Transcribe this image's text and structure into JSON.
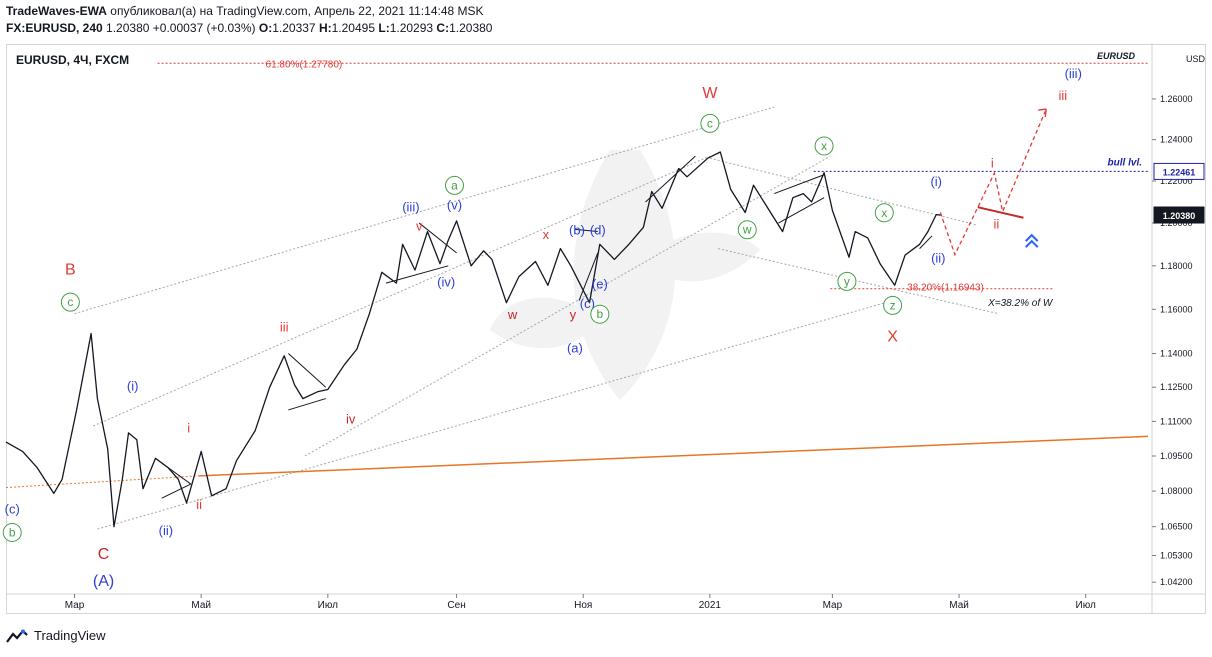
{
  "header": {
    "line1_author": "TradeWaves-EWA",
    "line1_rest": "опубликовал(а) на TradingView.com, Апрель 22, 2021 11:14:48 MSK",
    "symbol": "FX:EURUSD, 240",
    "last": "1.20380",
    "change": "+0.00037 (+0.03%)",
    "o_label": "O:",
    "o": "1.20337",
    "h_label": "H:",
    "h": "1.20495",
    "l_label": "L:",
    "l": "1.20293",
    "c_label": "C:",
    "c": "1.20380"
  },
  "chart_title": "EURUSD, 4Ч, FXCM",
  "footer": {
    "brand": "TradingView"
  },
  "chart_data": {
    "type": "line",
    "title": "EURUSD, 4Ч, FXCM",
    "symbol_watermark": "EURUSD",
    "currency_label": "USD",
    "y_scale": "log",
    "ylim": [
      1.038,
      1.287
    ],
    "xlim": [
      "2020-01-28",
      "2021-07-31"
    ],
    "x_ticks": [
      {
        "date": "2020-03-01",
        "label": "Мар"
      },
      {
        "date": "2020-05-01",
        "label": "Май"
      },
      {
        "date": "2020-07-01",
        "label": "Июл"
      },
      {
        "date": "2020-09-01",
        "label": "Сен"
      },
      {
        "date": "2020-11-01",
        "label": "Ноя"
      },
      {
        "date": "2021-01-01",
        "label": "2021"
      },
      {
        "date": "2021-03-01",
        "label": "Мар"
      },
      {
        "date": "2021-05-01",
        "label": "Май"
      },
      {
        "date": "2021-07-01",
        "label": "Июл"
      }
    ],
    "y_ticks": [
      "1.26000",
      "1.24000",
      "1.22000",
      "1.20000",
      "1.18000",
      "1.16000",
      "1.14000",
      "1.12500",
      "1.11000",
      "1.09500",
      "1.08000",
      "1.06500",
      "1.05300",
      "1.04200"
    ],
    "price_badges": [
      {
        "value": "1.22461",
        "price": 1.22461,
        "style": "outline"
      },
      {
        "value": "1.20380",
        "price": 1.2038,
        "style": "filled"
      }
    ],
    "series": [
      {
        "points": [
          [
            "2020-01-28",
            1.101
          ],
          [
            "2020-02-05",
            1.097
          ],
          [
            "2020-02-12",
            1.09
          ],
          [
            "2020-02-20",
            1.079
          ],
          [
            "2020-02-24",
            1.085
          ],
          [
            "2020-03-02",
            1.115
          ],
          [
            "2020-03-09",
            1.149
          ],
          [
            "2020-03-12",
            1.12
          ],
          [
            "2020-03-17",
            1.098
          ],
          [
            "2020-03-20",
            1.065
          ],
          [
            "2020-03-24",
            1.085
          ],
          [
            "2020-03-27",
            1.105
          ],
          [
            "2020-03-31",
            1.102
          ],
          [
            "2020-04-03",
            1.081
          ],
          [
            "2020-04-09",
            1.094
          ],
          [
            "2020-04-15",
            1.09
          ],
          [
            "2020-04-20",
            1.085
          ],
          [
            "2020-04-24",
            1.075
          ],
          [
            "2020-05-01",
            1.097
          ],
          [
            "2020-05-06",
            1.078
          ],
          [
            "2020-05-13",
            1.081
          ],
          [
            "2020-05-18",
            1.093
          ],
          [
            "2020-05-27",
            1.106
          ],
          [
            "2020-06-03",
            1.125
          ],
          [
            "2020-06-10",
            1.139
          ],
          [
            "2020-06-15",
            1.126
          ],
          [
            "2020-06-19",
            1.12
          ],
          [
            "2020-06-26",
            1.123
          ],
          [
            "2020-07-01",
            1.124
          ],
          [
            "2020-07-09",
            1.135
          ],
          [
            "2020-07-15",
            1.142
          ],
          [
            "2020-07-21",
            1.158
          ],
          [
            "2020-07-27",
            1.177
          ],
          [
            "2020-08-03",
            1.172
          ],
          [
            "2020-08-06",
            1.19
          ],
          [
            "2020-08-12",
            1.178
          ],
          [
            "2020-08-18",
            1.196
          ],
          [
            "2020-08-24",
            1.181
          ],
          [
            "2020-08-28",
            1.192
          ],
          [
            "2020-09-01",
            1.201
          ],
          [
            "2020-09-08",
            1.18
          ],
          [
            "2020-09-14",
            1.187
          ],
          [
            "2020-09-18",
            1.183
          ],
          [
            "2020-09-25",
            1.163
          ],
          [
            "2020-10-01",
            1.175
          ],
          [
            "2020-10-09",
            1.182
          ],
          [
            "2020-10-15",
            1.171
          ],
          [
            "2020-10-21",
            1.188
          ],
          [
            "2020-10-26",
            1.18
          ],
          [
            "2020-11-04",
            1.163
          ],
          [
            "2020-11-09",
            1.19
          ],
          [
            "2020-11-16",
            1.183
          ],
          [
            "2020-11-23",
            1.19
          ],
          [
            "2020-11-30",
            1.198
          ],
          [
            "2020-12-04",
            1.215
          ],
          [
            "2020-12-09",
            1.207
          ],
          [
            "2020-12-17",
            1.226
          ],
          [
            "2020-12-21",
            1.222
          ],
          [
            "2020-12-31",
            1.231
          ],
          [
            "2021-01-06",
            1.234
          ],
          [
            "2021-01-11",
            1.216
          ],
          [
            "2021-01-18",
            1.205
          ],
          [
            "2021-01-22",
            1.218
          ],
          [
            "2021-01-27",
            1.21
          ],
          [
            "2021-02-05",
            1.196
          ],
          [
            "2021-02-10",
            1.212
          ],
          [
            "2021-02-15",
            1.214
          ],
          [
            "2021-02-19",
            1.21
          ],
          [
            "2021-02-25",
            1.224
          ],
          [
            "2021-03-01",
            1.206
          ],
          [
            "2021-03-09",
            1.184
          ],
          [
            "2021-03-12",
            1.196
          ],
          [
            "2021-03-18",
            1.193
          ],
          [
            "2021-03-24",
            1.181
          ],
          [
            "2021-03-31",
            1.171
          ],
          [
            "2021-04-05",
            1.185
          ],
          [
            "2021-04-12",
            1.19
          ],
          [
            "2021-04-16",
            1.196
          ],
          [
            "2021-04-20",
            1.204
          ],
          [
            "2021-04-22",
            1.2038
          ]
        ]
      }
    ],
    "horizontal_lines": [
      {
        "label": "61.80%(1.27780)",
        "price": 1.2778,
        "color": "#e53935",
        "from": "2020-04-10",
        "to": "2021-07-31",
        "style": "dotted"
      },
      {
        "label": "bull lvl.",
        "price": 1.22461,
        "color": "#1e22aa",
        "from": "2021-02-20",
        "to": "2021-07-31",
        "style": "dotted"
      },
      {
        "label": "38.20%(1.16943)",
        "price": 1.16943,
        "color": "#e53935",
        "from": "2021-02-28",
        "to": "2021-06-15",
        "style": "dotted"
      }
    ],
    "annotations": [
      {
        "text": "X=38.2% of W",
        "date": "2021-05-15",
        "price": 1.1615,
        "color": "#131722",
        "italic": true
      },
      {
        "text": "B",
        "date": "2020-02-28",
        "price": 1.176,
        "color": "#e53935"
      },
      {
        "text": "c",
        "date": "2020-02-28",
        "price": 1.161,
        "color": "#43a047",
        "circle": true
      },
      {
        "text": "C",
        "date": "2020-03-15",
        "price": 1.0515,
        "color": "#c62828"
      },
      {
        "text": "(A)",
        "date": "2020-03-15",
        "price": 1.0405,
        "color": "#2e3fd6"
      },
      {
        "text": "(c)",
        "date": "2020-01-31",
        "price": 1.0705,
        "color": "#2e3fd6"
      },
      {
        "text": "b",
        "date": "2020-01-31",
        "price": 1.0605,
        "color": "#43a047",
        "circle": true
      },
      {
        "text": "(i)",
        "date": "2020-03-29",
        "price": 1.1235,
        "color": "#2e3fd6"
      },
      {
        "text": "(ii)",
        "date": "2020-04-14",
        "price": 1.0615,
        "color": "#2e3fd6"
      },
      {
        "text": "i",
        "date": "2020-04-25",
        "price": 1.1052,
        "color": "#e53935"
      },
      {
        "text": "ii",
        "date": "2020-04-30",
        "price": 1.0725,
        "color": "#e53935"
      },
      {
        "text": "iii",
        "date": "2020-06-10",
        "price": 1.15,
        "color": "#e53935"
      },
      {
        "text": "iv",
        "date": "2020-07-12",
        "price": 1.109,
        "color": "#c62828"
      },
      {
        "text": "(iii)",
        "date": "2020-08-10",
        "price": 1.2055,
        "color": "#2e3fd6"
      },
      {
        "text": "v",
        "date": "2020-08-14",
        "price": 1.1965,
        "color": "#e53935"
      },
      {
        "text": "a",
        "date": "2020-08-31",
        "price": 1.2155,
        "color": "#43a047",
        "circle": true
      },
      {
        "text": "(v)",
        "date": "2020-08-31",
        "price": 1.2065,
        "color": "#2e3fd6"
      },
      {
        "text": "(iv)",
        "date": "2020-08-27",
        "price": 1.1705,
        "color": "#2e3fd6"
      },
      {
        "text": "w",
        "date": "2020-09-28",
        "price": 1.1555,
        "color": "#c62828"
      },
      {
        "text": "x",
        "date": "2020-10-14",
        "price": 1.1925,
        "color": "#e53935"
      },
      {
        "text": "y",
        "date": "2020-10-27",
        "price": 1.1555,
        "color": "#c62828"
      },
      {
        "text": "(a)",
        "date": "2020-10-28",
        "price": 1.1405,
        "color": "#2e3fd6"
      },
      {
        "text": "(b)",
        "date": "2020-10-29",
        "price": 1.1945,
        "color": "#2e3fd6"
      },
      {
        "text": "(d)",
        "date": "2020-11-08",
        "price": 1.1945,
        "color": "#2e3fd6"
      },
      {
        "text": "(c)",
        "date": "2020-11-03",
        "price": 1.1605,
        "color": "#2e3fd6"
      },
      {
        "text": "(e)",
        "date": "2020-11-09",
        "price": 1.1695,
        "color": "#2e3fd6"
      },
      {
        "text": "b",
        "date": "2020-11-09",
        "price": 1.1555,
        "color": "#43a047",
        "circle": true
      },
      {
        "text": "W",
        "date": "2021-01-01",
        "price": 1.2605,
        "color": "#e53935"
      },
      {
        "text": "c",
        "date": "2021-01-01",
        "price": 1.2455,
        "color": "#43a047",
        "circle": true
      },
      {
        "text": "w",
        "date": "2021-01-19",
        "price": 1.1945,
        "color": "#43a047",
        "circle": true
      },
      {
        "text": "x",
        "date": "2021-02-25",
        "price": 1.2345,
        "color": "#43a047",
        "circle": true
      },
      {
        "text": "x",
        "date": "2021-03-26",
        "price": 1.2025,
        "color": "#43a047",
        "circle": true
      },
      {
        "text": "y",
        "date": "2021-03-08",
        "price": 1.1705,
        "color": "#43a047",
        "circle": true
      },
      {
        "text": "z",
        "date": "2021-03-30",
        "price": 1.1595,
        "color": "#43a047",
        "circle": true
      },
      {
        "text": "X",
        "date": "2021-03-30",
        "price": 1.1455,
        "color": "#e53935"
      },
      {
        "text": "(i)",
        "date": "2021-04-20",
        "price": 1.2175,
        "color": "#2e3fd6"
      },
      {
        "text": "(ii)",
        "date": "2021-04-21",
        "price": 1.1815,
        "color": "#2e3fd6"
      },
      {
        "text": "i",
        "date": "2021-05-17",
        "price": 1.2265,
        "color": "#e53935"
      },
      {
        "text": "ii",
        "date": "2021-05-19",
        "price": 1.1975,
        "color": "#e53935"
      },
      {
        "text": "(iii)",
        "date": "2021-06-25",
        "price": 1.2705,
        "color": "#2e3fd6"
      },
      {
        "text": "iii",
        "date": "2021-06-20",
        "price": 1.2595,
        "color": "#e53935"
      }
    ]
  },
  "colors": {
    "price_line": "#131722",
    "channel_lines": "#a7a7a7",
    "trendline_orange": "#e8742a",
    "projection_red": "#e53935",
    "wave_blue": "#2e3fd6",
    "wave_green": "#43a047",
    "wave_red": "#e53935"
  }
}
